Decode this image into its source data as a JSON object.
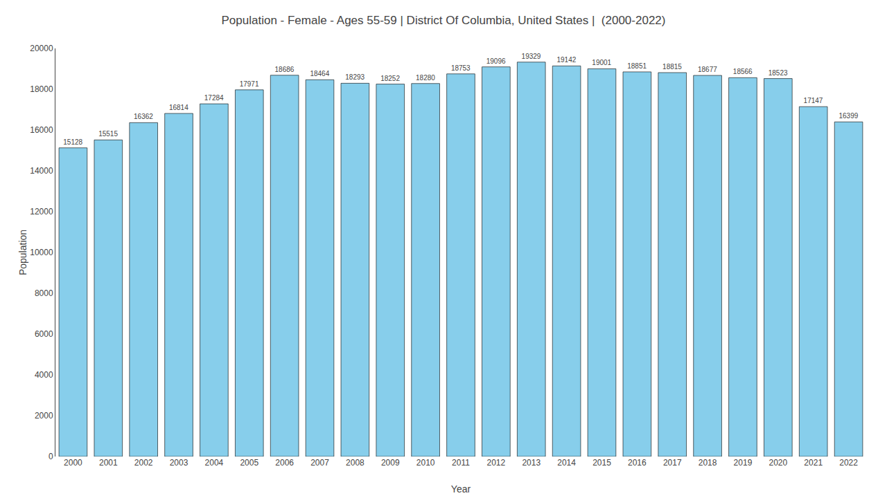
{
  "chart_data": {
    "type": "bar",
    "title": "Population - Female - Ages 55-59 | District Of Columbia, United States |  (2000-2022)",
    "xlabel": "Year",
    "ylabel": "Population",
    "categories": [
      "2000",
      "2001",
      "2002",
      "2003",
      "2004",
      "2005",
      "2006",
      "2007",
      "2008",
      "2009",
      "2010",
      "2011",
      "2012",
      "2013",
      "2014",
      "2015",
      "2016",
      "2017",
      "2018",
      "2019",
      "2020",
      "2021",
      "2022"
    ],
    "values": [
      15128,
      15515,
      16362,
      16814,
      17284,
      17971,
      18686,
      18464,
      18293,
      18252,
      18280,
      18753,
      19096,
      19329,
      19142,
      19001,
      18851,
      18815,
      18677,
      18566,
      18523,
      17147,
      16399
    ],
    "color": "#87ceeb",
    "ylim": [
      0,
      20000
    ],
    "yticks": [
      0,
      2000,
      4000,
      6000,
      8000,
      10000,
      12000,
      14000,
      16000,
      18000,
      20000
    ],
    "grid": false,
    "data_labels": true
  }
}
